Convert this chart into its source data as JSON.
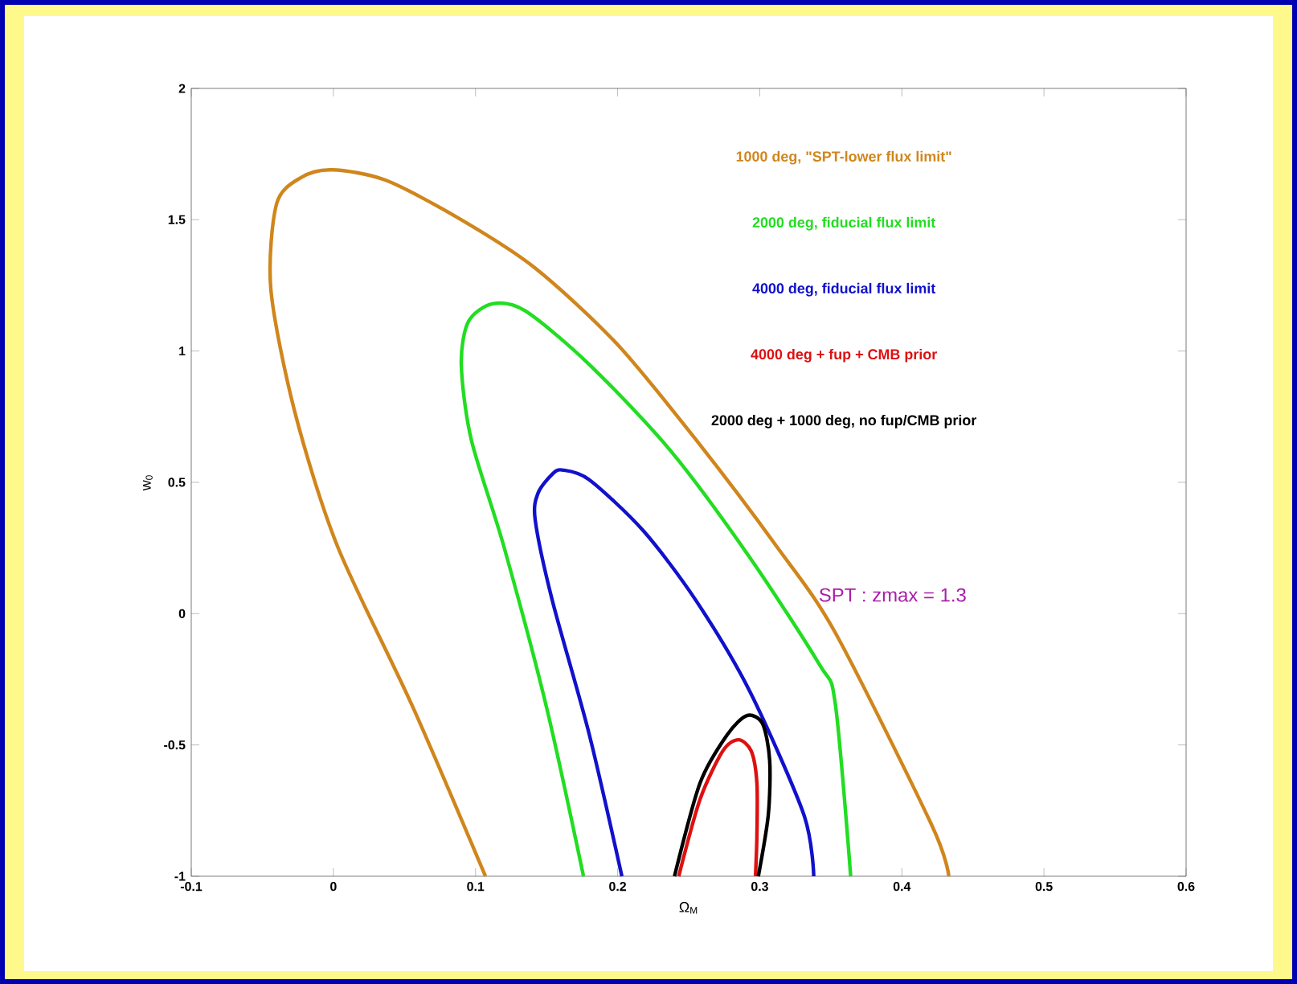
{
  "chart_data": {
    "type": "line",
    "xlabel": "Ω$_{M}$",
    "ylabel": "w$_{0}$",
    "xlim": [
      -0.1,
      0.6
    ],
    "ylim": [
      -1,
      2
    ],
    "xticks": [
      -0.1,
      0,
      0.1,
      0.2,
      0.3,
      0.4,
      0.5,
      0.6
    ],
    "yticks": [
      -1,
      -0.5,
      0,
      0.5,
      1,
      1.5,
      2
    ],
    "grid": false,
    "legend": "top right",
    "marker": "none",
    "line_style": "solid",
    "annotations": [
      "SPT : zmax = 1.3"
    ],
    "series": [
      {
        "name": "1000 deg, \"SPT-lower flux limit\"",
        "color": "#d0861c",
        "x": [
          0.107,
          0.056,
          0.003,
          -0.027,
          -0.044,
          -0.04,
          -0.023,
          -0.001,
          0.037,
          0.09,
          0.142,
          0.199,
          0.255,
          0.312,
          0.353,
          0.421,
          0.433
        ],
        "values": [
          -1,
          -0.357,
          0.255,
          0.765,
          1.235,
          1.56,
          1.66,
          1.69,
          1.65,
          1.5,
          1.316,
          1.03,
          0.663,
          0.255,
          -0.071,
          -0.805,
          -1
        ]
      },
      {
        "name": "2000 deg, fiducial flux limit",
        "color": "#22dd22",
        "x": [
          0.176,
          0.15,
          0.12,
          0.097,
          0.09,
          0.095,
          0.112,
          0.135,
          0.18,
          0.237,
          0.293,
          0.342,
          0.353,
          0.364
        ],
        "values": [
          -1,
          -0.357,
          0.255,
          0.663,
          0.949,
          1.112,
          1.18,
          1.153,
          0.949,
          0.622,
          0.214,
          -0.194,
          -0.337,
          -1
        ]
      },
      {
        "name": "4000 deg, fiducial flux limit",
        "color": "#1111cc",
        "x": [
          0.203,
          0.18,
          0.154,
          0.142,
          0.144,
          0.154,
          0.161,
          0.18,
          0.218,
          0.255,
          0.293,
          0.331,
          0.338
        ],
        "values": [
          -1,
          -0.459,
          0.051,
          0.357,
          0.459,
          0.531,
          0.547,
          0.51,
          0.316,
          0.051,
          -0.296,
          -0.765,
          -1
        ]
      },
      {
        "name": "4000 deg + fup + CMB prior",
        "color": "#dd1111",
        "x": [
          0.243,
          0.258,
          0.274,
          0.285,
          0.294,
          0.298,
          0.298,
          0.297
        ],
        "values": [
          -1,
          -0.707,
          -0.523,
          -0.48,
          -0.523,
          -0.645,
          -0.848,
          -1
        ]
      },
      {
        "name": "2000 deg + 1000 deg, no fup/CMB prior",
        "color": "#000000",
        "x": [
          0.24,
          0.258,
          0.277,
          0.291,
          0.302,
          0.307,
          0.306,
          0.299
        ],
        "values": [
          -1,
          -0.645,
          -0.462,
          -0.388,
          -0.419,
          -0.56,
          -0.767,
          -1
        ]
      }
    ]
  }
}
